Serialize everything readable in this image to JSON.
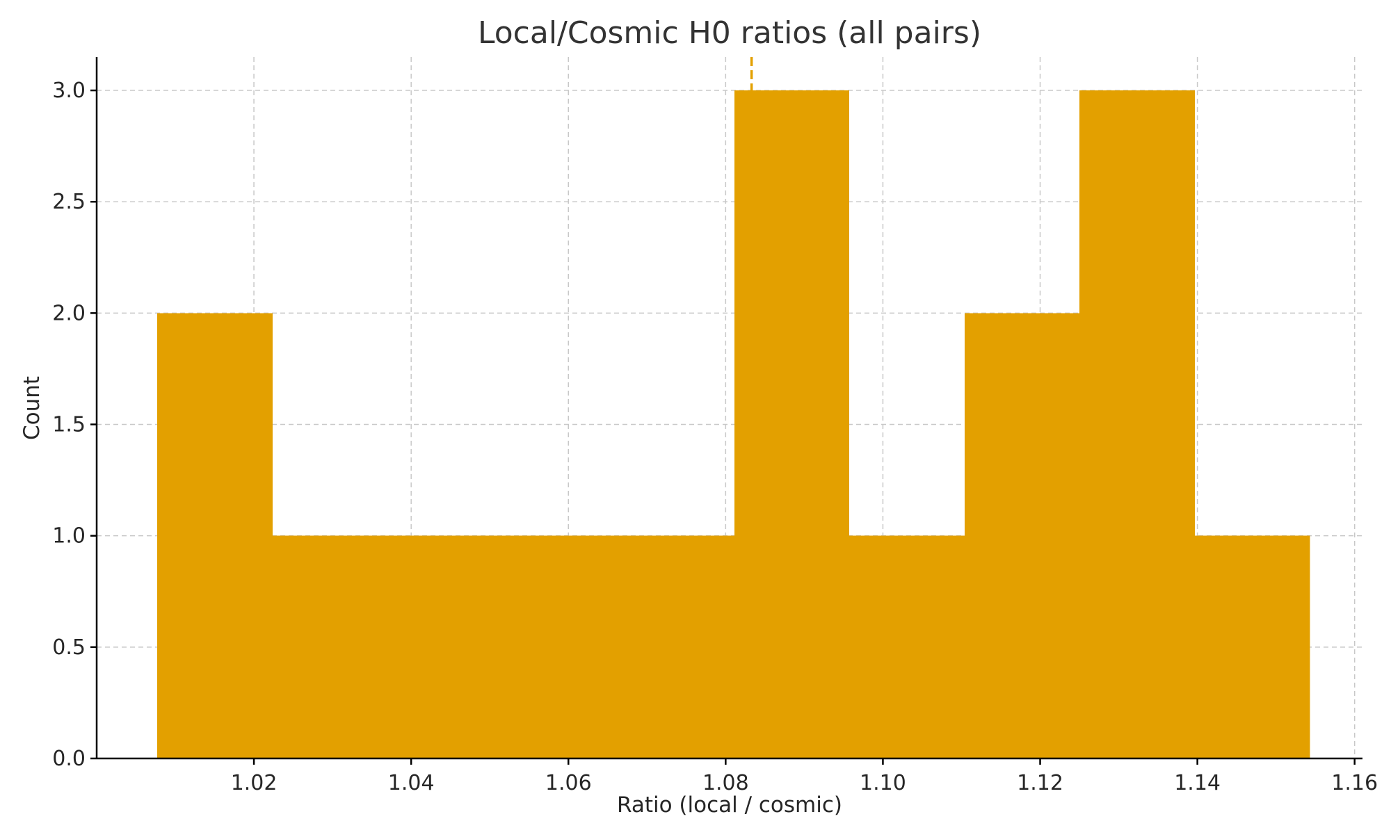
{
  "chart_data": {
    "type": "bar",
    "subtype": "histogram",
    "title": "Local/Cosmic H0 ratios (all pairs)",
    "xlabel": "Ratio (local / cosmic)",
    "ylabel": "Count",
    "xlim": [
      1.0,
      1.161
    ],
    "ylim": [
      0,
      3.15
    ],
    "x_ticks": [
      1.02,
      1.04,
      1.06,
      1.08,
      1.1,
      1.12,
      1.14,
      1.16
    ],
    "x_tick_labels": [
      "1.02",
      "1.04",
      "1.06",
      "1.08",
      "1.10",
      "1.12",
      "1.14",
      "1.16"
    ],
    "y_ticks": [
      0.0,
      0.5,
      1.0,
      1.5,
      2.0,
      2.5,
      3.0
    ],
    "y_tick_labels": [
      "0.0",
      "0.5",
      "1.0",
      "1.5",
      "2.0",
      "2.5",
      "3.0"
    ],
    "grid": true,
    "bar_color": "#e3a000",
    "bin_edges": [
      1.0077,
      1.0224,
      1.0371,
      1.0517,
      1.0664,
      1.0811,
      1.0957,
      1.1104,
      1.125,
      1.1397,
      1.1543
    ],
    "counts": [
      2,
      1,
      1,
      1,
      1,
      3,
      1,
      2,
      3,
      1
    ],
    "reference_line": {
      "x": 1.0833,
      "style": "dashed",
      "color": "#e3a000"
    }
  }
}
